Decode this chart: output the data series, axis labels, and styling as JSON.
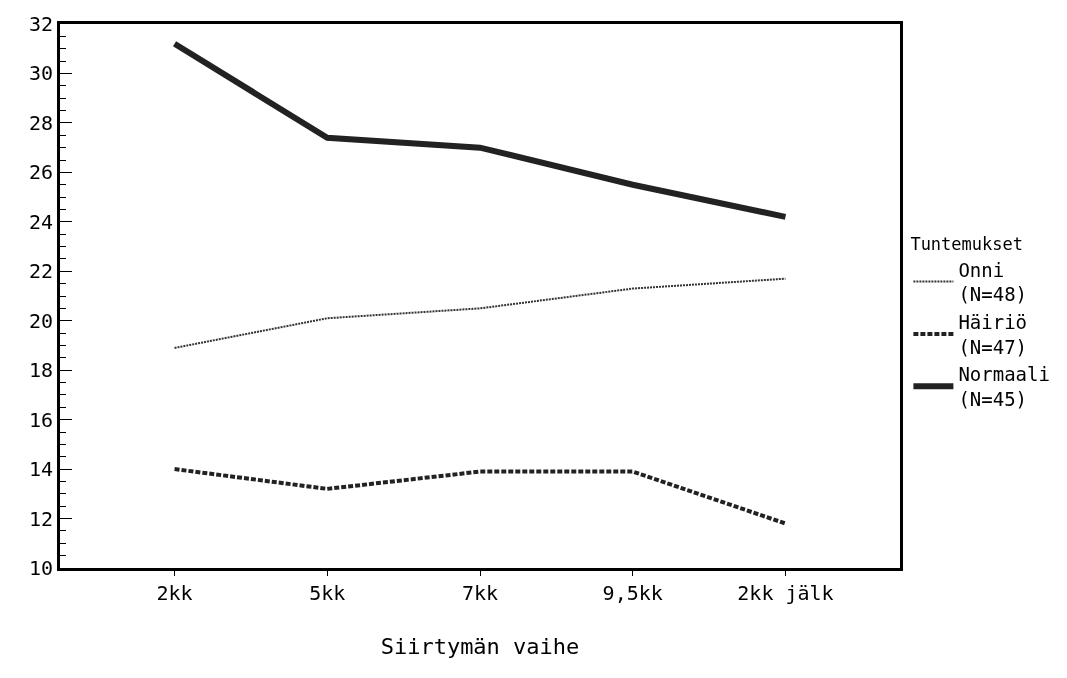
{
  "chart_data": {
    "type": "line",
    "xlabel": "Siirtymän vaihe",
    "legend_title": "Tuntemukset",
    "categories": [
      "2kk",
      "5kk",
      "7kk",
      "9,5kk",
      "2kk jälk"
    ],
    "series": [
      {
        "name": "Onni\n(N=48)",
        "color": "#333333",
        "line_style": "dotted",
        "values": [
          18.9,
          20.1,
          20.5,
          21.3,
          21.7
        ]
      },
      {
        "name": "Häiriö\n(N=47)",
        "color": "#222222",
        "line_style": "dashed",
        "values": [
          14.0,
          13.2,
          13.9,
          13.9,
          11.8
        ]
      },
      {
        "name": "Normaali\n(N=45)",
        "color": "#222222",
        "line_style": "solid",
        "values": [
          31.2,
          27.4,
          27.0,
          25.5,
          24.2
        ]
      }
    ],
    "ylim": [
      10,
      32
    ],
    "yticks": [
      10,
      12,
      14,
      16,
      18,
      20,
      22,
      24,
      26,
      28,
      30,
      32
    ],
    "legend": "right",
    "marker": "none"
  }
}
